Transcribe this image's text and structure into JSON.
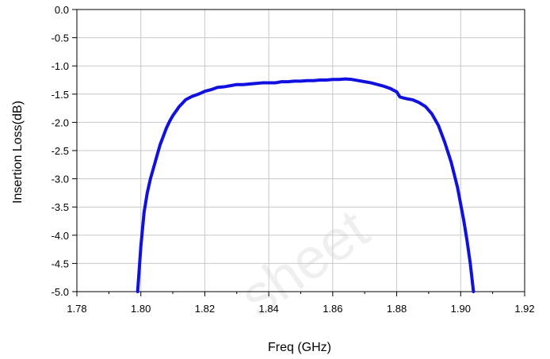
{
  "chart_data": {
    "type": "line",
    "title": "",
    "xlabel": "Freq (GHz)",
    "ylabel": "Insertion Loss(dB)",
    "xlim": [
      1.78,
      1.92
    ],
    "ylim": [
      -5.0,
      0.0
    ],
    "x_ticks": [
      "1.78",
      "1.80",
      "1.82",
      "1.84",
      "1.86",
      "1.88",
      "1.90",
      "1.92"
    ],
    "y_ticks": [
      "0.0",
      "-0.5",
      "-1.0",
      "-1.5",
      "-2.0",
      "-2.5",
      "-3.0",
      "-3.5",
      "-4.0",
      "-4.5",
      "-5.0"
    ],
    "grid": true,
    "line_color": "#1010e0",
    "watermark": "sheet",
    "series": [
      {
        "x": [
          1.799,
          1.7995,
          1.8,
          1.8005,
          1.801,
          1.802,
          1.803,
          1.804,
          1.805,
          1.806,
          1.807,
          1.808,
          1.809,
          1.81,
          1.811,
          1.812,
          1.813,
          1.814,
          1.815,
          1.816,
          1.817,
          1.818,
          1.82,
          1.822,
          1.824,
          1.826,
          1.828,
          1.83,
          1.832,
          1.834,
          1.836,
          1.838,
          1.84,
          1.842,
          1.844,
          1.846,
          1.848,
          1.85,
          1.852,
          1.854,
          1.856,
          1.858,
          1.86,
          1.862,
          1.864,
          1.866,
          1.868,
          1.87,
          1.872,
          1.874,
          1.876,
          1.878,
          1.88,
          1.881,
          1.883,
          1.885,
          1.887,
          1.889,
          1.891,
          1.893,
          1.895,
          1.897,
          1.899,
          1.9,
          1.901,
          1.902,
          1.903,
          1.9035,
          1.904
        ],
        "y": [
          -5.0,
          -4.6,
          -4.2,
          -3.9,
          -3.6,
          -3.25,
          -3.0,
          -2.8,
          -2.6,
          -2.4,
          -2.25,
          -2.1,
          -1.98,
          -1.88,
          -1.8,
          -1.72,
          -1.66,
          -1.6,
          -1.57,
          -1.54,
          -1.52,
          -1.5,
          -1.45,
          -1.42,
          -1.38,
          -1.37,
          -1.35,
          -1.33,
          -1.33,
          -1.32,
          -1.31,
          -1.3,
          -1.3,
          -1.3,
          -1.28,
          -1.28,
          -1.27,
          -1.27,
          -1.26,
          -1.26,
          -1.25,
          -1.25,
          -1.24,
          -1.24,
          -1.23,
          -1.24,
          -1.26,
          -1.28,
          -1.3,
          -1.33,
          -1.36,
          -1.4,
          -1.46,
          -1.55,
          -1.58,
          -1.6,
          -1.65,
          -1.72,
          -1.85,
          -2.05,
          -2.35,
          -2.7,
          -3.15,
          -3.45,
          -3.75,
          -4.1,
          -4.5,
          -4.75,
          -5.0
        ]
      }
    ]
  }
}
